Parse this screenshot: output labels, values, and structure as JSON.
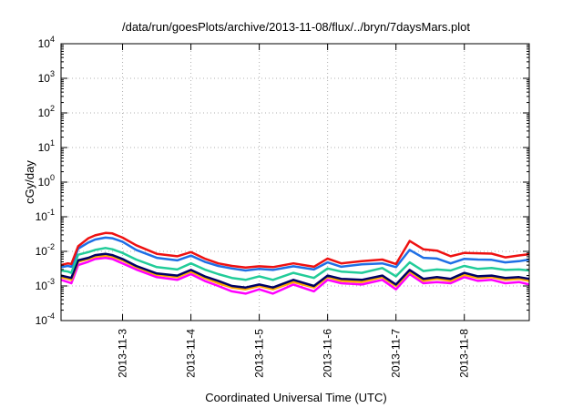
{
  "chart_data": {
    "type": "line",
    "title": "/data/run/goesPlots/archive/2013-11-08/flux/../bryn/7daysMars.plot",
    "xlabel": "Coordinated Universal Time (UTC)",
    "ylabel": "cGy/day",
    "y_scale": "log",
    "ylim": [
      0.0001,
      10000
    ],
    "y_ticks": [
      {
        "value": 0.0001,
        "base": "10",
        "exp": "-4"
      },
      {
        "value": 0.001,
        "base": "10",
        "exp": "-3"
      },
      {
        "value": 0.01,
        "base": "10",
        "exp": "-2"
      },
      {
        "value": 0.1,
        "base": "10",
        "exp": "-1"
      },
      {
        "value": 1,
        "base": "10",
        "exp": "0"
      },
      {
        "value": 10,
        "base": "10",
        "exp": "1"
      },
      {
        "value": 100,
        "base": "10",
        "exp": "2"
      },
      {
        "value": 1000,
        "base": "10",
        "exp": "3"
      },
      {
        "value": 10000,
        "base": "10",
        "exp": "4"
      }
    ],
    "xlim": [
      2.1,
      8.95
    ],
    "x_ticks": [
      {
        "value": 3,
        "label": "2013-11-3"
      },
      {
        "value": 4,
        "label": "2013-11-4"
      },
      {
        "value": 5,
        "label": "2013-11-5"
      },
      {
        "value": 6,
        "label": "2013-11-6"
      },
      {
        "value": 7,
        "label": "2013-11-7"
      },
      {
        "value": 8,
        "label": "2013-11-8"
      }
    ],
    "grid": true,
    "series": [
      {
        "color": "#ff00ff",
        "points": [
          [
            2.1,
            0.0015
          ],
          [
            2.2,
            0.0013
          ],
          [
            2.25,
            0.0012
          ],
          [
            2.35,
            0.004
          ],
          [
            2.5,
            0.005
          ],
          [
            2.6,
            0.006
          ],
          [
            2.75,
            0.0065
          ],
          [
            2.85,
            0.006
          ],
          [
            3.0,
            0.0045
          ],
          [
            3.2,
            0.003
          ],
          [
            3.5,
            0.0018
          ],
          [
            3.8,
            0.0015
          ],
          [
            4.0,
            0.0022
          ],
          [
            4.2,
            0.0014
          ],
          [
            4.4,
            0.001
          ],
          [
            4.6,
            0.0007
          ],
          [
            4.8,
            0.0006
          ],
          [
            5.0,
            0.0008
          ],
          [
            5.2,
            0.0006
          ],
          [
            5.5,
            0.0011
          ],
          [
            5.8,
            0.0007
          ],
          [
            6.0,
            0.0015
          ],
          [
            6.2,
            0.0012
          ],
          [
            6.5,
            0.0011
          ],
          [
            6.8,
            0.0015
          ],
          [
            7.0,
            0.0008
          ],
          [
            7.2,
            0.0022
          ],
          [
            7.4,
            0.0012
          ],
          [
            7.6,
            0.0013
          ],
          [
            7.8,
            0.0012
          ],
          [
            8.0,
            0.0018
          ],
          [
            8.2,
            0.0014
          ],
          [
            8.4,
            0.0015
          ],
          [
            8.6,
            0.0012
          ],
          [
            8.8,
            0.0013
          ],
          [
            8.95,
            0.0011
          ]
        ]
      },
      {
        "color": "#ffaa00",
        "points": [
          [
            2.1,
            0.0018
          ],
          [
            2.2,
            0.0016
          ],
          [
            2.25,
            0.0015
          ],
          [
            2.35,
            0.005
          ],
          [
            2.5,
            0.006
          ],
          [
            2.6,
            0.007
          ],
          [
            2.75,
            0.0075
          ],
          [
            2.85,
            0.007
          ],
          [
            3.0,
            0.0055
          ],
          [
            3.2,
            0.0035
          ],
          [
            3.5,
            0.0021
          ],
          [
            3.8,
            0.0018
          ],
          [
            4.0,
            0.0026
          ],
          [
            4.2,
            0.0017
          ],
          [
            4.4,
            0.0012
          ],
          [
            4.6,
            0.0009
          ],
          [
            4.8,
            0.0008
          ],
          [
            5.0,
            0.001
          ],
          [
            5.2,
            0.0008
          ],
          [
            5.5,
            0.0013
          ],
          [
            5.8,
            0.0009
          ],
          [
            6.0,
            0.0018
          ],
          [
            6.2,
            0.0014
          ],
          [
            6.5,
            0.0013
          ],
          [
            6.8,
            0.0018
          ],
          [
            7.0,
            0.001
          ],
          [
            7.2,
            0.0026
          ],
          [
            7.4,
            0.0014
          ],
          [
            7.6,
            0.0016
          ],
          [
            7.8,
            0.0014
          ],
          [
            8.0,
            0.0021
          ],
          [
            8.2,
            0.0017
          ],
          [
            8.4,
            0.0018
          ],
          [
            8.6,
            0.0015
          ],
          [
            8.8,
            0.0016
          ],
          [
            8.95,
            0.0014
          ]
        ]
      },
      {
        "color": "#000066",
        "points": [
          [
            2.1,
            0.002
          ],
          [
            2.2,
            0.0018
          ],
          [
            2.25,
            0.0017
          ],
          [
            2.35,
            0.0055
          ],
          [
            2.5,
            0.0065
          ],
          [
            2.6,
            0.0078
          ],
          [
            2.75,
            0.0085
          ],
          [
            2.85,
            0.0078
          ],
          [
            3.0,
            0.006
          ],
          [
            3.2,
            0.0038
          ],
          [
            3.5,
            0.0023
          ],
          [
            3.8,
            0.002
          ],
          [
            4.0,
            0.0029
          ],
          [
            4.2,
            0.0019
          ],
          [
            4.4,
            0.0014
          ],
          [
            4.6,
            0.001
          ],
          [
            4.8,
            0.0009
          ],
          [
            5.0,
            0.0011
          ],
          [
            5.2,
            0.0009
          ],
          [
            5.5,
            0.0015
          ],
          [
            5.8,
            0.001
          ],
          [
            6.0,
            0.002
          ],
          [
            6.2,
            0.0016
          ],
          [
            6.5,
            0.0015
          ],
          [
            6.8,
            0.002
          ],
          [
            7.0,
            0.0011
          ],
          [
            7.2,
            0.0029
          ],
          [
            7.4,
            0.0016
          ],
          [
            7.6,
            0.0018
          ],
          [
            7.8,
            0.0016
          ],
          [
            8.0,
            0.0024
          ],
          [
            8.2,
            0.0019
          ],
          [
            8.4,
            0.002
          ],
          [
            8.6,
            0.0017
          ],
          [
            8.8,
            0.0018
          ],
          [
            8.95,
            0.0016
          ]
        ]
      },
      {
        "color": "#22cc99",
        "points": [
          [
            2.1,
            0.0028
          ],
          [
            2.2,
            0.0026
          ],
          [
            2.25,
            0.0024
          ],
          [
            2.35,
            0.008
          ],
          [
            2.5,
            0.0095
          ],
          [
            2.6,
            0.011
          ],
          [
            2.75,
            0.0125
          ],
          [
            2.85,
            0.0115
          ],
          [
            3.0,
            0.009
          ],
          [
            3.2,
            0.0058
          ],
          [
            3.5,
            0.0035
          ],
          [
            3.8,
            0.003
          ],
          [
            4.0,
            0.0045
          ],
          [
            4.2,
            0.003
          ],
          [
            4.4,
            0.0022
          ],
          [
            4.6,
            0.0017
          ],
          [
            4.8,
            0.0015
          ],
          [
            5.0,
            0.0019
          ],
          [
            5.2,
            0.0015
          ],
          [
            5.5,
            0.0024
          ],
          [
            5.8,
            0.0017
          ],
          [
            6.0,
            0.0032
          ],
          [
            6.2,
            0.0026
          ],
          [
            6.5,
            0.0024
          ],
          [
            6.8,
            0.0033
          ],
          [
            7.0,
            0.0019
          ],
          [
            7.2,
            0.0048
          ],
          [
            7.4,
            0.0027
          ],
          [
            7.6,
            0.003
          ],
          [
            7.8,
            0.0028
          ],
          [
            8.0,
            0.0038
          ],
          [
            8.2,
            0.0031
          ],
          [
            8.4,
            0.0033
          ],
          [
            8.6,
            0.0029
          ],
          [
            8.8,
            0.003
          ],
          [
            8.95,
            0.0028
          ]
        ]
      },
      {
        "color": "#1f6fe5",
        "points": [
          [
            2.1,
            0.0035
          ],
          [
            2.2,
            0.0038
          ],
          [
            2.25,
            0.0036
          ],
          [
            2.35,
            0.012
          ],
          [
            2.5,
            0.018
          ],
          [
            2.6,
            0.022
          ],
          [
            2.75,
            0.025
          ],
          [
            2.85,
            0.024
          ],
          [
            3.0,
            0.019
          ],
          [
            3.2,
            0.011
          ],
          [
            3.5,
            0.0065
          ],
          [
            3.8,
            0.0055
          ],
          [
            4.0,
            0.0075
          ],
          [
            4.2,
            0.005
          ],
          [
            4.4,
            0.0038
          ],
          [
            4.6,
            0.0032
          ],
          [
            4.8,
            0.0028
          ],
          [
            5.0,
            0.0031
          ],
          [
            5.2,
            0.0029
          ],
          [
            5.5,
            0.0037
          ],
          [
            5.8,
            0.003
          ],
          [
            6.0,
            0.0048
          ],
          [
            6.2,
            0.0036
          ],
          [
            6.5,
            0.0042
          ],
          [
            6.8,
            0.0045
          ],
          [
            7.0,
            0.0035
          ],
          [
            7.2,
            0.011
          ],
          [
            7.4,
            0.0065
          ],
          [
            7.6,
            0.0062
          ],
          [
            7.8,
            0.0045
          ],
          [
            8.0,
            0.0061
          ],
          [
            8.2,
            0.0058
          ],
          [
            8.4,
            0.0057
          ],
          [
            8.6,
            0.0048
          ],
          [
            8.8,
            0.0052
          ],
          [
            8.95,
            0.0058
          ]
        ]
      },
      {
        "color": "#ee1111",
        "points": [
          [
            2.1,
            0.004
          ],
          [
            2.2,
            0.0045
          ],
          [
            2.25,
            0.0043
          ],
          [
            2.35,
            0.014
          ],
          [
            2.5,
            0.024
          ],
          [
            2.6,
            0.029
          ],
          [
            2.75,
            0.034
          ],
          [
            2.85,
            0.033
          ],
          [
            3.0,
            0.025
          ],
          [
            3.2,
            0.015
          ],
          [
            3.5,
            0.0085
          ],
          [
            3.8,
            0.0072
          ],
          [
            4.0,
            0.0095
          ],
          [
            4.2,
            0.0062
          ],
          [
            4.4,
            0.0045
          ],
          [
            4.6,
            0.0038
          ],
          [
            4.8,
            0.0034
          ],
          [
            5.0,
            0.0037
          ],
          [
            5.2,
            0.0035
          ],
          [
            5.5,
            0.0045
          ],
          [
            5.8,
            0.0036
          ],
          [
            6.0,
            0.0062
          ],
          [
            6.2,
            0.0045
          ],
          [
            6.5,
            0.0052
          ],
          [
            6.8,
            0.0058
          ],
          [
            7.0,
            0.0043
          ],
          [
            7.2,
            0.02
          ],
          [
            7.4,
            0.0115
          ],
          [
            7.6,
            0.0105
          ],
          [
            7.8,
            0.0072
          ],
          [
            8.0,
            0.009
          ],
          [
            8.2,
            0.0088
          ],
          [
            8.4,
            0.0086
          ],
          [
            8.6,
            0.0067
          ],
          [
            8.8,
            0.0076
          ],
          [
            8.95,
            0.0083
          ]
        ]
      }
    ]
  }
}
